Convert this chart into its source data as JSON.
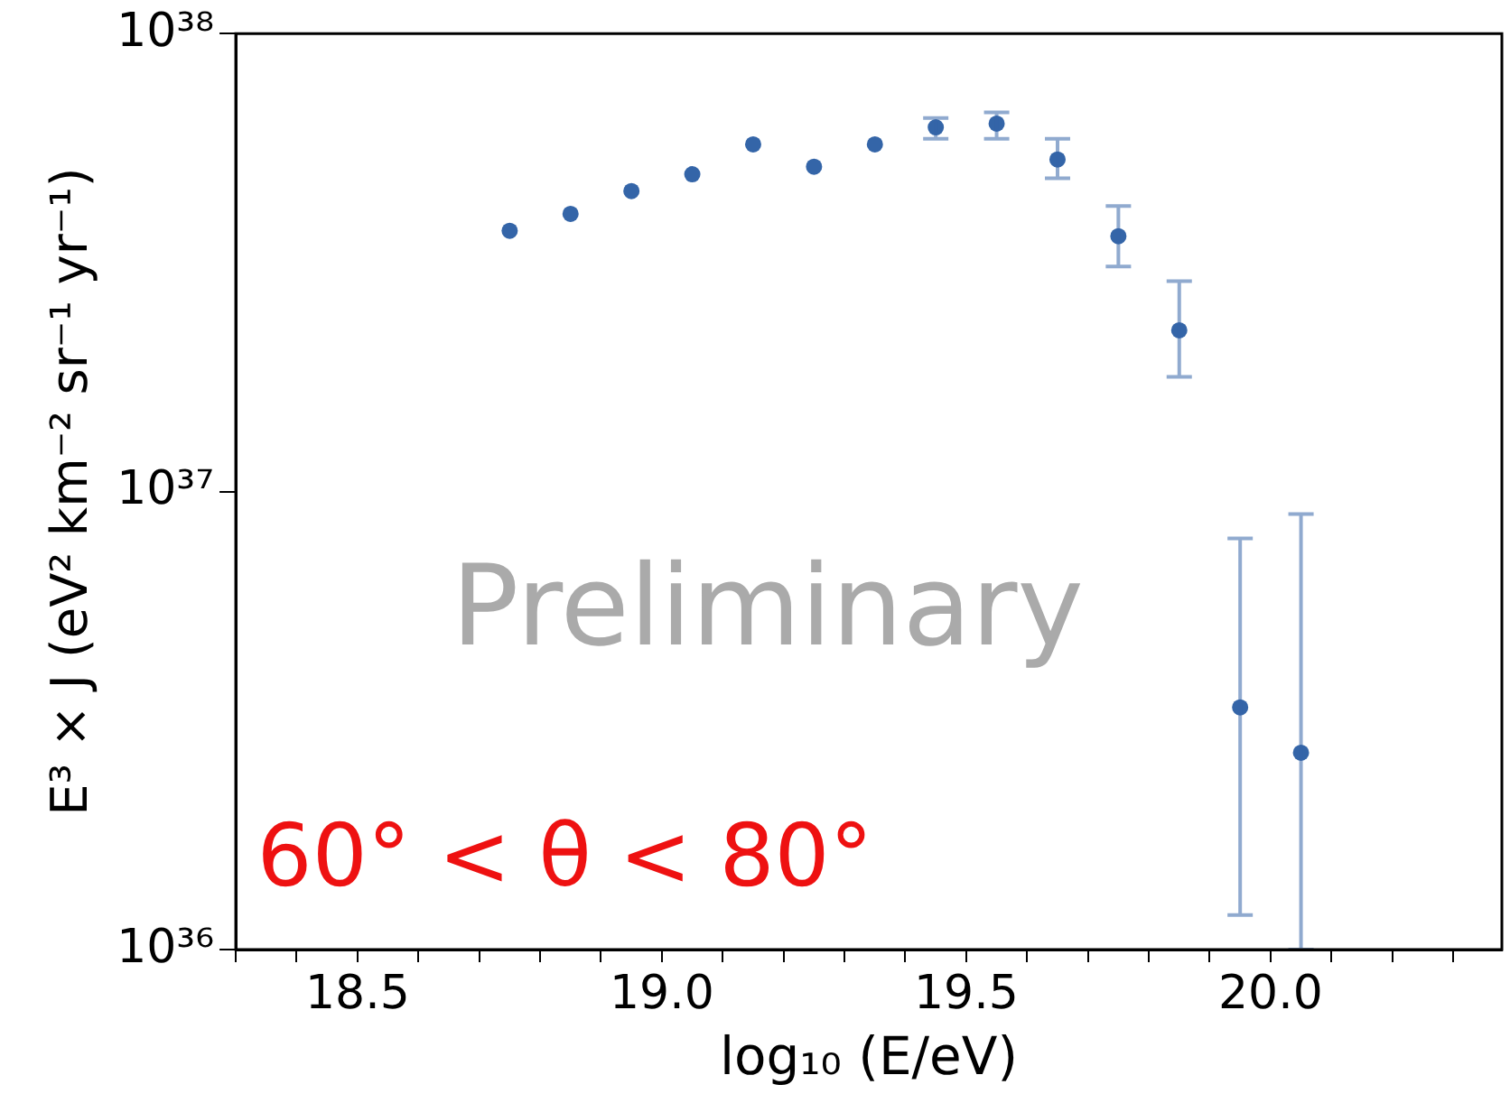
{
  "chart_data": {
    "type": "scatter",
    "xlabel": "log₁₀ (E/eV)",
    "ylabel": "E³ × J (eV² km⁻² sr⁻¹ yr⁻¹)",
    "annotations": [
      "Preliminary",
      "60° < θ < 80°"
    ],
    "log": "y",
    "grid": false,
    "legend": false,
    "marker": "circle",
    "xlim": [
      18.3,
      20.38
    ],
    "xticks": [
      {
        "value": 18.3,
        "label": null
      },
      {
        "value": 18.4,
        "label": null
      },
      {
        "value": 18.5,
        "label": "18.5"
      },
      {
        "value": 18.6,
        "label": null
      },
      {
        "value": 18.7,
        "label": null
      },
      {
        "value": 18.8,
        "label": null
      },
      {
        "value": 18.9,
        "label": null
      },
      {
        "value": 19.0,
        "label": "19.0"
      },
      {
        "value": 19.1,
        "label": null
      },
      {
        "value": 19.2,
        "label": null
      },
      {
        "value": 19.3,
        "label": null
      },
      {
        "value": 19.4,
        "label": null
      },
      {
        "value": 19.5,
        "label": "19.5"
      },
      {
        "value": 19.6,
        "label": null
      },
      {
        "value": 19.7,
        "label": null
      },
      {
        "value": 19.8,
        "label": null
      },
      {
        "value": 19.9,
        "label": null
      },
      {
        "value": 20.0,
        "label": "20.0"
      },
      {
        "value": 20.1,
        "label": null
      },
      {
        "value": 20.2,
        "label": null
      },
      {
        "value": 20.3,
        "label": null
      }
    ],
    "ylim": [
      1e+36,
      1e+38
    ],
    "yticks": [
      {
        "value": 1e+36,
        "label": "10³⁶"
      },
      {
        "value": 1e+37,
        "label": "10³⁷"
      },
      {
        "value": 1e+38,
        "label": "10³⁸"
      }
    ],
    "series": [
      {
        "color": "#3465a8",
        "x": [
          18.75,
          18.85,
          18.95,
          19.05,
          19.15,
          19.25,
          19.35,
          19.45,
          19.55,
          19.65,
          19.75,
          19.85,
          19.95,
          20.05
        ],
        "values": [
          3.71e+37,
          4.04e+37,
          4.53e+37,
          4.93e+37,
          5.73e+37,
          5.12e+37,
          5.73e+37,
          6.24e+37,
          6.36e+37,
          5.31e+37,
          3.61e+37,
          2.25e+37,
          3.38e+36,
          2.69e+36
        ],
        "errors": [
          null,
          null,
          null,
          null,
          null,
          null,
          null,
          [
            5.89e+37,
            6.54e+37
          ],
          [
            5.89e+37,
            6.73e+37
          ],
          [
            4.83e+37,
            5.89e+37
          ],
          [
            3.1e+37,
            4.2e+37
          ],
          [
            1.78e+37,
            2.88e+37
          ],
          [
            1.19e+36,
            7.9e+36
          ],
          [
            1e+36,
            8.93e+36
          ]
        ]
      }
    ]
  }
}
